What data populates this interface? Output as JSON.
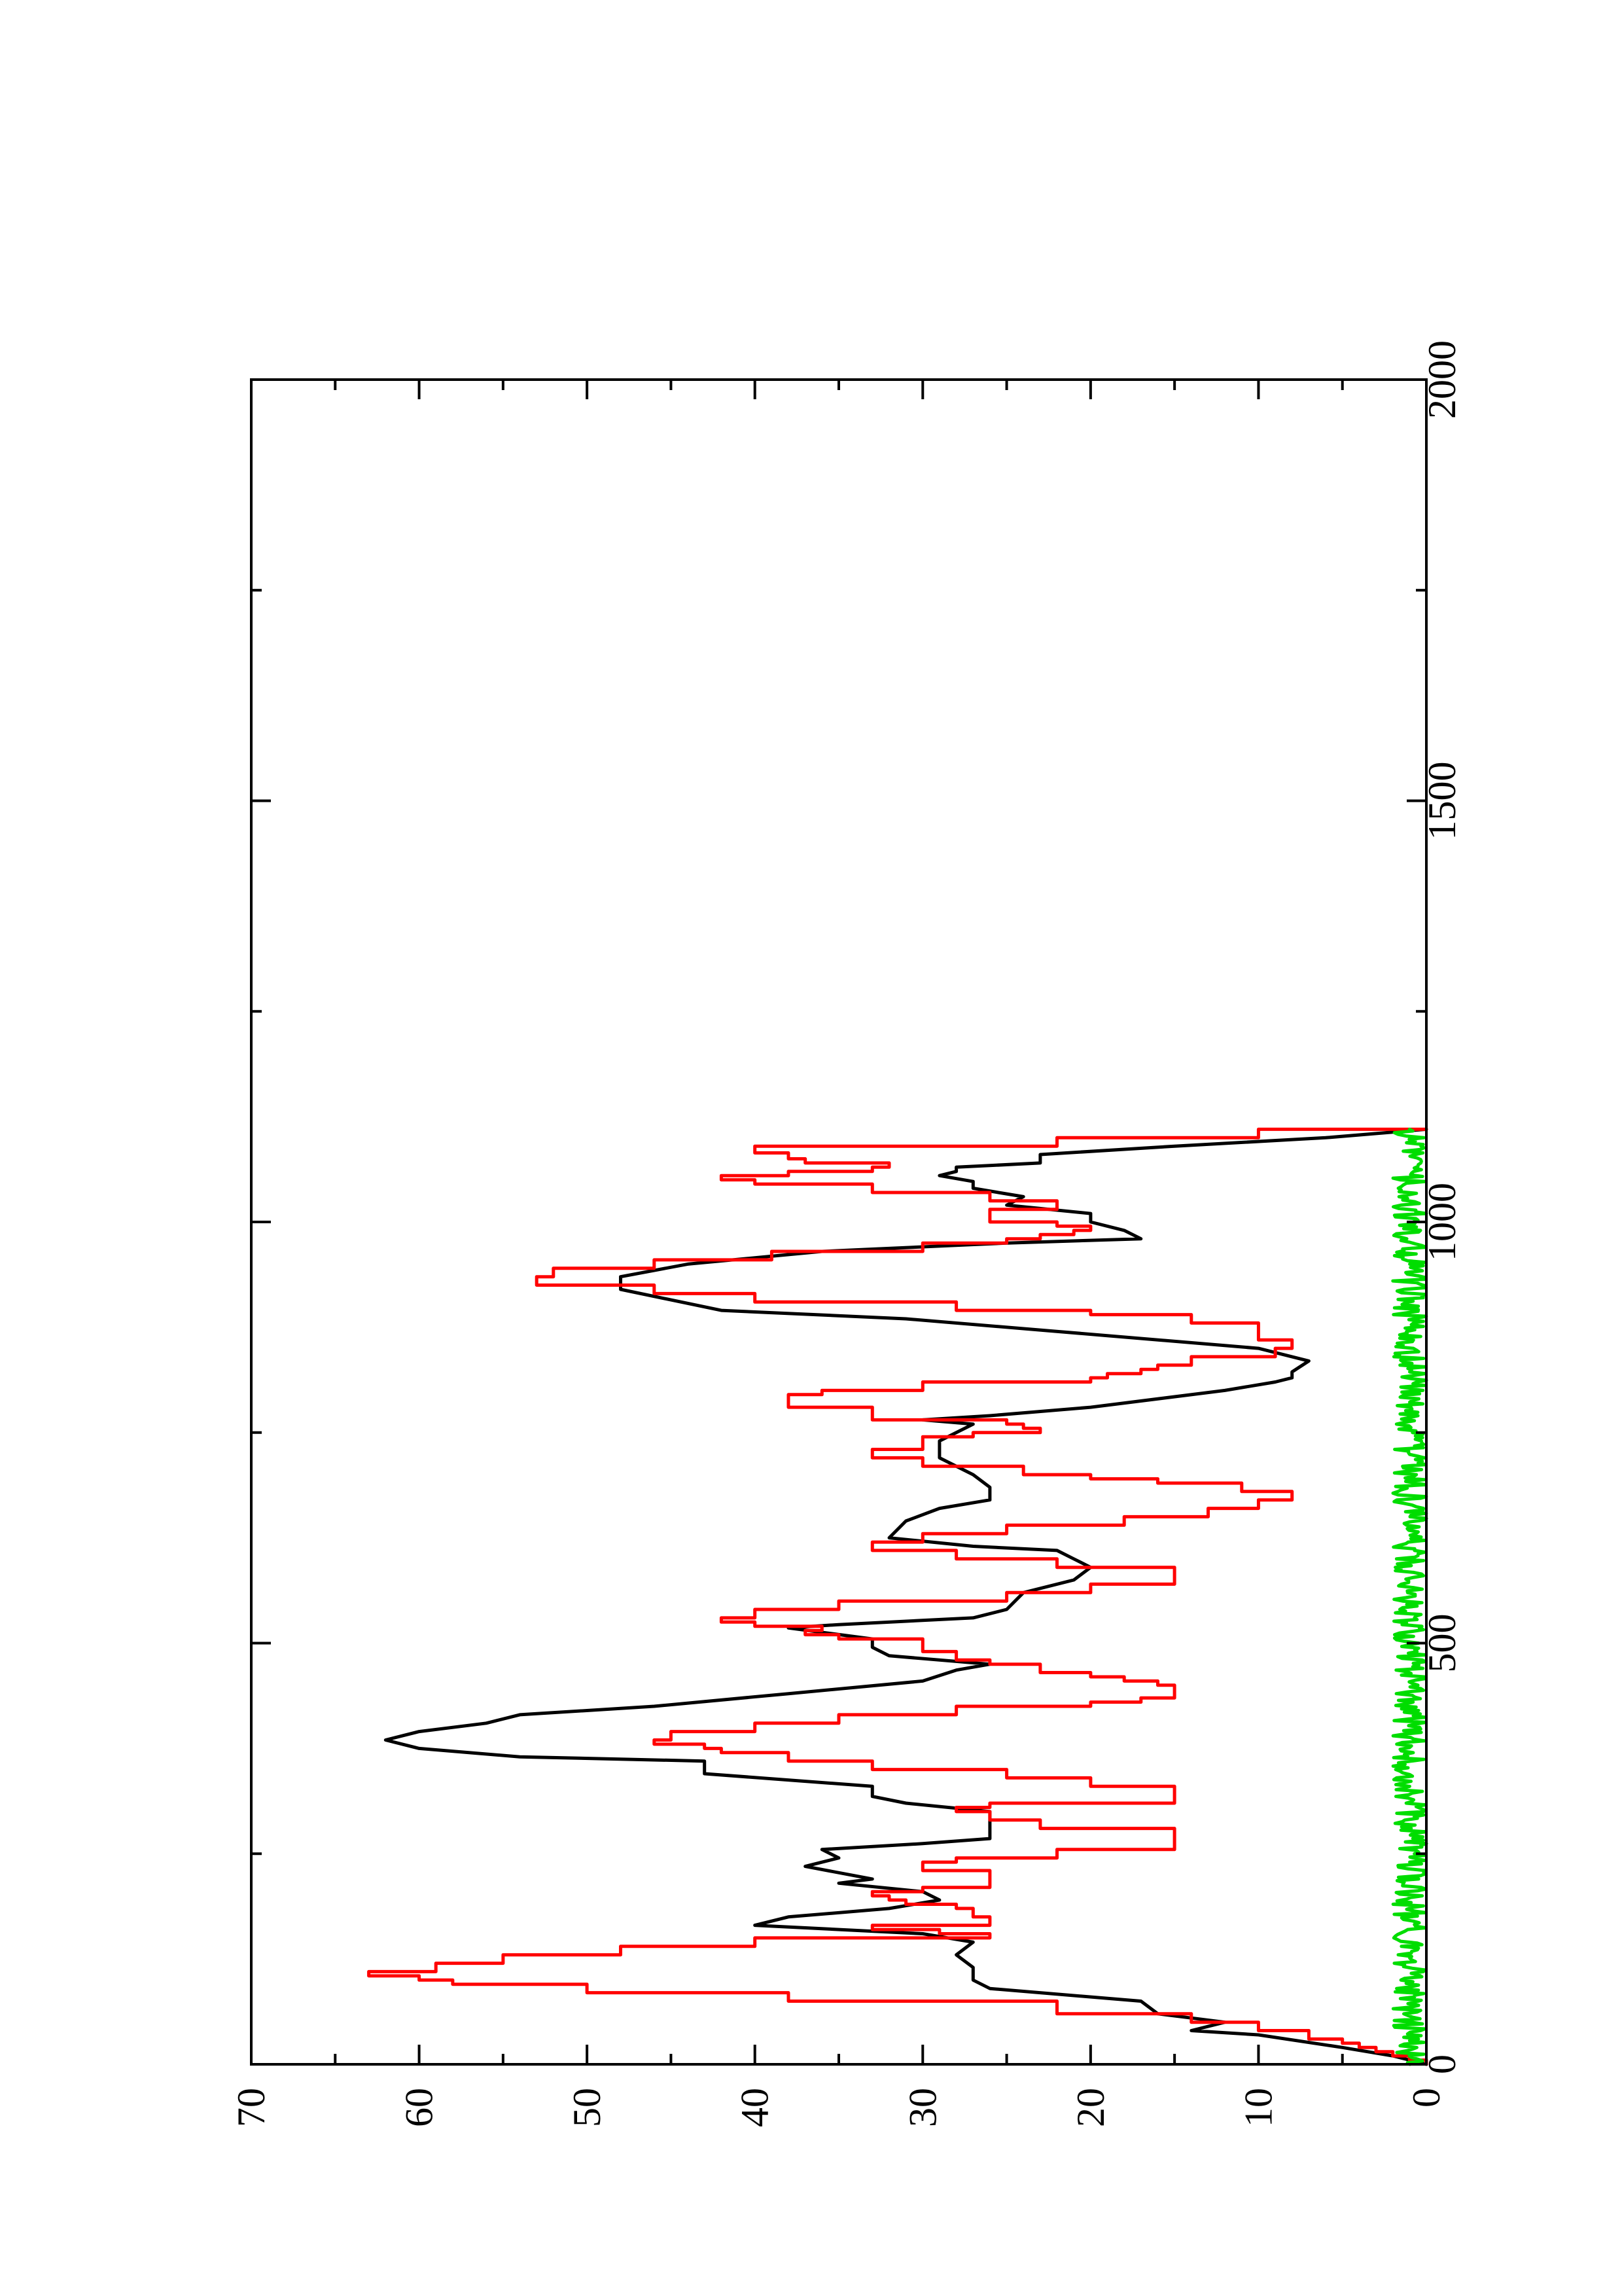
{
  "chart_data": {
    "type": "line",
    "title": "",
    "xlabel": "",
    "ylabel": "",
    "x_range": [
      0,
      2000
    ],
    "y_range": [
      0,
      70
    ],
    "x_ticks": [
      "0",
      "500",
      "1000",
      "1500",
      "2000"
    ],
    "y_ticks": [
      "0",
      "10",
      "20",
      "30",
      "40",
      "50",
      "60",
      "70"
    ],
    "x_minor_step": 250,
    "y_minor_step": 5,
    "grid": false,
    "legend": "none",
    "orientation": "rotated 90 degrees counter-clockwise on page",
    "series": [
      {
        "color": "#000000",
        "step": false,
        "points": [
          [
            0,
            0
          ],
          [
            10,
            2
          ],
          [
            20,
            5
          ],
          [
            35,
            10
          ],
          [
            40,
            14
          ],
          [
            50,
            12
          ],
          [
            60,
            16
          ],
          [
            75,
            17
          ],
          [
            90,
            26
          ],
          [
            100,
            27
          ],
          [
            115,
            27
          ],
          [
            130,
            28
          ],
          [
            145,
            27
          ],
          [
            155,
            30
          ],
          [
            165,
            40
          ],
          [
            175,
            38
          ],
          [
            185,
            32
          ],
          [
            195,
            29
          ],
          [
            205,
            30
          ],
          [
            215,
            35
          ],
          [
            220,
            33
          ],
          [
            235,
            37
          ],
          [
            245,
            35
          ],
          [
            255,
            36
          ],
          [
            262,
            30
          ],
          [
            268,
            26
          ],
          [
            280,
            26
          ],
          [
            300,
            26
          ],
          [
            310,
            31
          ],
          [
            318,
            33
          ],
          [
            330,
            33
          ],
          [
            345,
            43
          ],
          [
            360,
            43
          ],
          [
            365,
            54
          ],
          [
            375,
            60
          ],
          [
            385,
            62
          ],
          [
            395,
            60
          ],
          [
            405,
            56
          ],
          [
            415,
            54
          ],
          [
            425,
            46
          ],
          [
            440,
            38
          ],
          [
            455,
            30
          ],
          [
            468,
            28
          ],
          [
            475,
            26
          ],
          [
            485,
            32
          ],
          [
            495,
            33
          ],
          [
            505,
            33
          ],
          [
            518,
            38
          ],
          [
            522,
            35
          ],
          [
            530,
            27
          ],
          [
            540,
            25
          ],
          [
            560,
            24
          ],
          [
            575,
            21
          ],
          [
            590,
            20
          ],
          [
            600,
            21
          ],
          [
            610,
            22
          ],
          [
            615,
            27
          ],
          [
            625,
            32
          ],
          [
            645,
            31
          ],
          [
            660,
            29
          ],
          [
            670,
            26
          ],
          [
            685,
            26
          ],
          [
            700,
            27
          ],
          [
            720,
            29
          ],
          [
            740,
            29
          ],
          [
            760,
            27
          ],
          [
            765,
            30
          ],
          [
            770,
            26
          ],
          [
            780,
            20
          ],
          [
            800,
            12
          ],
          [
            810,
            9
          ],
          [
            815,
            8
          ],
          [
            822,
            8
          ],
          [
            835,
            7
          ],
          [
            850,
            10
          ],
          [
            865,
            19
          ],
          [
            885,
            31
          ],
          [
            895,
            42
          ],
          [
            920,
            48
          ],
          [
            935,
            48
          ],
          [
            950,
            44
          ],
          [
            965,
            36
          ],
          [
            975,
            25
          ],
          [
            980,
            17
          ],
          [
            990,
            18
          ],
          [
            1000,
            20
          ],
          [
            1010,
            20
          ],
          [
            1020,
            25
          ],
          [
            1030,
            24
          ],
          [
            1040,
            27
          ],
          [
            1048,
            27
          ],
          [
            1055,
            29
          ],
          [
            1060,
            28
          ],
          [
            1065,
            28
          ],
          [
            1070,
            23
          ],
          [
            1080,
            23
          ],
          [
            1090,
            15
          ],
          [
            1100,
            6
          ],
          [
            1110,
            0
          ]
        ]
      },
      {
        "color": "#ff0000",
        "step": true,
        "points": [
          [
            0,
            0
          ],
          [
            5,
            1
          ],
          [
            10,
            2
          ],
          [
            15,
            3
          ],
          [
            20,
            4
          ],
          [
            25,
            5
          ],
          [
            30,
            7
          ],
          [
            40,
            10
          ],
          [
            50,
            14
          ],
          [
            60,
            22
          ],
          [
            75,
            38
          ],
          [
            85,
            50
          ],
          [
            95,
            58
          ],
          [
            100,
            60
          ],
          [
            105,
            63
          ],
          [
            110,
            59
          ],
          [
            120,
            55
          ],
          [
            130,
            48
          ],
          [
            140,
            40
          ],
          [
            150,
            26
          ],
          [
            155,
            29
          ],
          [
            160,
            33
          ],
          [
            165,
            26
          ],
          [
            175,
            27
          ],
          [
            185,
            28
          ],
          [
            190,
            31
          ],
          [
            195,
            32
          ],
          [
            200,
            33
          ],
          [
            205,
            30
          ],
          [
            210,
            26
          ],
          [
            220,
            26
          ],
          [
            230,
            30
          ],
          [
            235,
            30
          ],
          [
            240,
            28
          ],
          [
            245,
            22
          ],
          [
            255,
            15
          ],
          [
            275,
            15
          ],
          [
            280,
            23
          ],
          [
            290,
            26
          ],
          [
            300,
            28
          ],
          [
            305,
            26
          ],
          [
            310,
            15
          ],
          [
            320,
            15
          ],
          [
            330,
            20
          ],
          [
            340,
            25
          ],
          [
            350,
            33
          ],
          [
            360,
            38
          ],
          [
            370,
            42
          ],
          [
            375,
            43
          ],
          [
            380,
            46
          ],
          [
            385,
            45
          ],
          [
            395,
            40
          ],
          [
            405,
            35
          ],
          [
            415,
            28
          ],
          [
            425,
            20
          ],
          [
            430,
            17
          ],
          [
            435,
            15
          ],
          [
            445,
            15
          ],
          [
            450,
            16
          ],
          [
            455,
            18
          ],
          [
            460,
            20
          ],
          [
            465,
            23
          ],
          [
            475,
            26
          ],
          [
            480,
            28
          ],
          [
            490,
            30
          ],
          [
            500,
            30
          ],
          [
            505,
            35
          ],
          [
            510,
            37
          ],
          [
            515,
            36
          ],
          [
            520,
            40
          ],
          [
            525,
            42
          ],
          [
            530,
            40
          ],
          [
            540,
            35
          ],
          [
            550,
            25
          ],
          [
            560,
            20
          ],
          [
            570,
            15
          ],
          [
            580,
            15
          ],
          [
            590,
            22
          ],
          [
            600,
            28
          ],
          [
            610,
            33
          ],
          [
            620,
            30
          ],
          [
            630,
            25
          ],
          [
            640,
            18
          ],
          [
            650,
            13
          ],
          [
            660,
            10
          ],
          [
            670,
            8
          ],
          [
            680,
            11
          ],
          [
            690,
            16
          ],
          [
            695,
            20
          ],
          [
            700,
            24
          ],
          [
            710,
            30
          ],
          [
            720,
            33
          ],
          [
            730,
            30
          ],
          [
            740,
            30
          ],
          [
            745,
            27
          ],
          [
            750,
            23
          ],
          [
            755,
            24
          ],
          [
            760,
            25
          ],
          [
            765,
            33
          ],
          [
            780,
            38
          ],
          [
            790,
            38
          ],
          [
            795,
            36
          ],
          [
            800,
            30
          ],
          [
            810,
            20
          ],
          [
            815,
            19
          ],
          [
            820,
            17
          ],
          [
            825,
            16
          ],
          [
            830,
            14
          ],
          [
            840,
            9
          ],
          [
            850,
            8
          ],
          [
            860,
            10
          ],
          [
            870,
            10
          ],
          [
            880,
            14
          ],
          [
            890,
            20
          ],
          [
            895,
            28
          ],
          [
            905,
            40
          ],
          [
            915,
            46
          ],
          [
            925,
            53
          ],
          [
            935,
            52
          ],
          [
            945,
            46
          ],
          [
            955,
            39
          ],
          [
            965,
            30
          ],
          [
            975,
            25
          ],
          [
            980,
            23
          ],
          [
            985,
            21
          ],
          [
            990,
            20
          ],
          [
            995,
            22
          ],
          [
            1000,
            26
          ],
          [
            1010,
            26
          ],
          [
            1015,
            22
          ],
          [
            1020,
            22
          ],
          [
            1025,
            26
          ],
          [
            1035,
            33
          ],
          [
            1045,
            40
          ],
          [
            1050,
            42
          ],
          [
            1055,
            38
          ],
          [
            1060,
            33
          ],
          [
            1065,
            32
          ],
          [
            1070,
            37
          ],
          [
            1075,
            38
          ],
          [
            1082,
            40
          ],
          [
            1090,
            22
          ],
          [
            1100,
            10
          ],
          [
            1110,
            0
          ]
        ]
      },
      {
        "color": "#00dd00",
        "step": false,
        "noise_band": [
          0,
          2
        ],
        "x_range": [
          0,
          1110
        ]
      }
    ]
  }
}
